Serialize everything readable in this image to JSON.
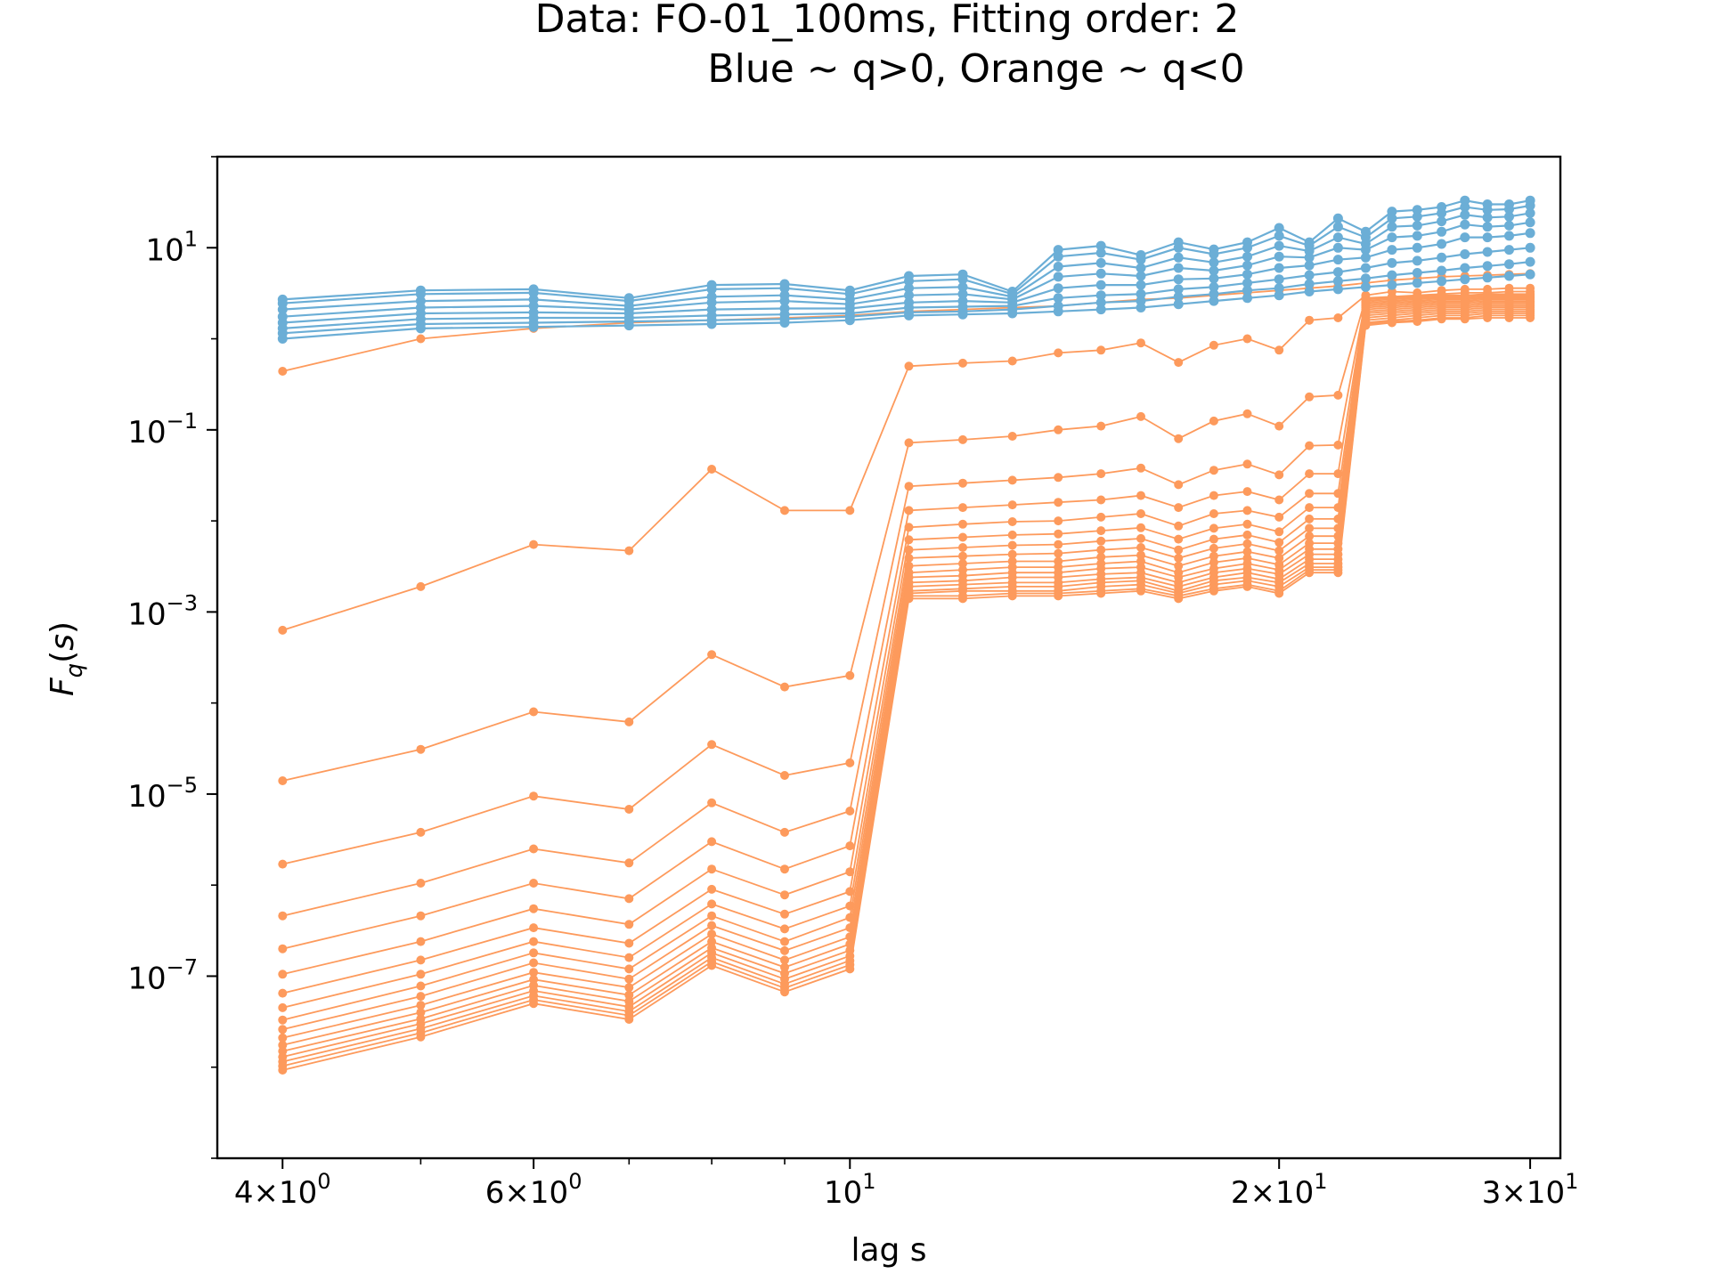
{
  "chart_data": {
    "type": "line",
    "title_line1": "Data: FO-01_100ms, Fitting order: 2",
    "title_line2": "Blue ~ q>0, Orange ~ q<0",
    "xlabel": "lag s",
    "ylabel": "F_q(s)",
    "xscale": "log",
    "yscale": "log",
    "xlim": [
      3.6,
      31.5
    ],
    "ylim": [
      1e-09,
      100
    ],
    "x": [
      4,
      5,
      6,
      7,
      8,
      9,
      10,
      11,
      12,
      13,
      14,
      15,
      16,
      17,
      18,
      19,
      20,
      21,
      22,
      23,
      24,
      25,
      26,
      27,
      28,
      29,
      30
    ],
    "x_ticks": [
      {
        "value": 4,
        "base": "4×10",
        "exp": "0"
      },
      {
        "value": 6,
        "base": "6×10",
        "exp": "0"
      },
      {
        "value": 10,
        "base": "10",
        "exp": "1"
      },
      {
        "value": 20,
        "base": "2×10",
        "exp": "1"
      },
      {
        "value": 30,
        "base": "3×10",
        "exp": "1"
      }
    ],
    "x_minor_ticks": [
      5,
      7,
      8,
      9
    ],
    "y_ticks": [
      {
        "value": 10,
        "base": "10",
        "exp": "1"
      },
      {
        "value": 0.1,
        "base": "10",
        "exp": "−1"
      },
      {
        "value": 0.001,
        "base": "10",
        "exp": "−3"
      },
      {
        "value": 1e-05,
        "base": "10",
        "exp": "−5"
      },
      {
        "value": 1e-07,
        "base": "10",
        "exp": "−7"
      }
    ],
    "colors": {
      "positive_q": "#6baed6",
      "negative_q": "#fd9a5c"
    },
    "grid": false,
    "legend": "none",
    "series_groups": [
      {
        "group": "orange",
        "color": "#fd9a5c",
        "description_of_trend": "q<0 curves",
        "series": [
          {
            "values": [
              0.44,
              1.0,
              1.3,
              1.5,
              1.6,
              1.7,
              1.8,
              2.0,
              2.1,
              2.2,
              2.3,
              2.5,
              2.7,
              2.8,
              3.0,
              3.2,
              3.4,
              3.6,
              3.8,
              4.1,
              4.4,
              4.6,
              4.8,
              4.9,
              5.0,
              5.1,
              5.2
            ]
          },
          {
            "values": [
              0.00063,
              0.0019,
              0.0055,
              0.0047,
              0.037,
              0.013,
              0.013,
              0.5,
              0.54,
              0.57,
              0.7,
              0.75,
              0.9,
              0.55,
              0.85,
              1.0,
              0.75,
              1.6,
              1.7,
              3.0,
              3.3,
              3.2,
              3.4,
              3.5,
              3.5,
              3.6,
              3.6
            ]
          },
          {
            "values": [
              1.4e-05,
              3.1e-05,
              8e-05,
              6.2e-05,
              0.00034,
              0.00015,
              0.0002,
              0.072,
              0.078,
              0.085,
              0.1,
              0.11,
              0.14,
              0.08,
              0.125,
              0.15,
              0.11,
              0.23,
              0.24,
              2.8,
              2.9,
              3.0,
              3.1,
              3.2,
              3.2,
              3.3,
              3.3
            ]
          },
          {
            "values": [
              1.7e-06,
              3.8e-06,
              9.5e-06,
              6.8e-06,
              3.5e-05,
              1.6e-05,
              2.2e-05,
              0.024,
              0.026,
              0.028,
              0.03,
              0.033,
              0.038,
              0.025,
              0.036,
              0.042,
              0.032,
              0.067,
              0.068,
              2.7,
              2.8,
              2.9,
              3.0,
              3.0,
              3.1,
              3.1,
              3.1
            ]
          },
          {
            "values": [
              4.6e-07,
              1.05e-06,
              2.5e-06,
              1.75e-06,
              8e-06,
              3.8e-06,
              6.5e-06,
              0.013,
              0.014,
              0.015,
              0.016,
              0.017,
              0.019,
              0.014,
              0.019,
              0.021,
              0.017,
              0.033,
              0.033,
              2.6,
              2.7,
              2.8,
              2.9,
              2.9,
              3.0,
              3.0,
              3.0
            ]
          },
          {
            "values": [
              2e-07,
              4.6e-07,
              1.05e-06,
              7.1e-07,
              3e-06,
              1.5e-06,
              2.7e-06,
              0.0085,
              0.0092,
              0.0098,
              0.01,
              0.011,
              0.012,
              0.0088,
              0.012,
              0.013,
              0.011,
              0.02,
              0.02,
              2.5,
              2.6,
              2.7,
              2.8,
              2.8,
              2.9,
              2.9,
              2.9
            ]
          },
          {
            "values": [
              1.05e-07,
              2.4e-07,
              5.5e-07,
              3.7e-07,
              1.5e-06,
              7.8e-07,
              1.4e-06,
              0.0062,
              0.0066,
              0.007,
              0.0072,
              0.0078,
              0.0084,
              0.0063,
              0.0083,
              0.0092,
              0.0076,
              0.014,
              0.014,
              2.4,
              2.5,
              2.6,
              2.7,
              2.7,
              2.8,
              2.8,
              2.8
            ]
          },
          {
            "values": [
              6.5e-08,
              1.5e-07,
              3.4e-07,
              2.3e-07,
              9e-07,
              4.8e-07,
              8.5e-07,
              0.0048,
              0.0051,
              0.0054,
              0.0055,
              0.006,
              0.0064,
              0.0048,
              0.0063,
              0.007,
              0.0058,
              0.0105,
              0.0105,
              2.3,
              2.4,
              2.5,
              2.6,
              2.6,
              2.7,
              2.7,
              2.7
            ]
          },
          {
            "values": [
              4.5e-08,
              1.05e-07,
              2.4e-07,
              1.6e-07,
              6.2e-07,
              3.3e-07,
              5.9e-07,
              0.0039,
              0.0041,
              0.0043,
              0.0044,
              0.0048,
              0.0051,
              0.0039,
              0.005,
              0.0056,
              0.0047,
              0.0083,
              0.0083,
              2.2,
              2.3,
              2.4,
              2.5,
              2.5,
              2.6,
              2.6,
              2.6
            ]
          },
          {
            "values": [
              3.3e-08,
              7.8e-08,
              1.8e-07,
              1.2e-07,
              4.6e-07,
              2.4e-07,
              4.4e-07,
              0.0032,
              0.0034,
              0.0036,
              0.0036,
              0.004,
              0.0042,
              0.0032,
              0.0041,
              0.0046,
              0.0039,
              0.0068,
              0.0068,
              2.1,
              2.2,
              2.3,
              2.4,
              2.4,
              2.5,
              2.5,
              2.5
            ]
          },
          {
            "values": [
              2.6e-08,
              6e-08,
              1.4e-07,
              9.3e-08,
              3.6e-07,
              1.9e-07,
              3.4e-07,
              0.0027,
              0.0029,
              0.0031,
              0.0031,
              0.0034,
              0.0036,
              0.0027,
              0.0035,
              0.0039,
              0.0033,
              0.0057,
              0.0057,
              2.0,
              2.1,
              2.2,
              2.3,
              2.3,
              2.4,
              2.4,
              2.4
            ]
          },
          {
            "values": [
              2.1e-08,
              4.8e-08,
              1.1e-07,
              7.5e-08,
              2.9e-07,
              1.5e-07,
              2.7e-07,
              0.0024,
              0.0025,
              0.0027,
              0.0027,
              0.003,
              0.0031,
              0.0024,
              0.003,
              0.0034,
              0.0029,
              0.0049,
              0.0049,
              1.9,
              2.0,
              2.1,
              2.2,
              2.2,
              2.3,
              2.3,
              2.3
            ]
          },
          {
            "values": [
              1.75e-08,
              4e-08,
              9.2e-08,
              6.2e-08,
              2.4e-07,
              1.25e-07,
              2.25e-07,
              0.0021,
              0.0022,
              0.0024,
              0.0024,
              0.0026,
              0.0027,
              0.0021,
              0.0027,
              0.003,
              0.0026,
              0.0043,
              0.0043,
              1.8,
              1.9,
              2.0,
              2.1,
              2.1,
              2.2,
              2.2,
              2.2
            ]
          },
          {
            "values": [
              1.5e-08,
              3.4e-08,
              7.9e-08,
              5.3e-08,
              2.05e-07,
              1.07e-07,
              1.92e-07,
              0.0019,
              0.002,
              0.0021,
              0.0021,
              0.0023,
              0.0024,
              0.0019,
              0.0024,
              0.0027,
              0.0023,
              0.0038,
              0.0038,
              1.7,
              1.8,
              1.9,
              2.0,
              2.0,
              2.1,
              2.1,
              2.1
            ]
          },
          {
            "values": [
              1.3e-08,
              3e-08,
              6.9e-08,
              4.6e-08,
              1.8e-07,
              9.3e-08,
              1.67e-07,
              0.0017,
              0.0018,
              0.0019,
              0.0019,
              0.0021,
              0.0022,
              0.0017,
              0.0022,
              0.0024,
              0.0021,
              0.0034,
              0.0034,
              1.6,
              1.7,
              1.8,
              1.9,
              1.9,
              2.0,
              2.0,
              2.0
            ]
          },
          {
            "values": [
              1.15e-08,
              2.65e-08,
              6.1e-08,
              4.1e-08,
              1.6e-07,
              8.2e-08,
              1.48e-07,
              0.0016,
              0.0017,
              0.0017,
              0.0017,
              0.0019,
              0.002,
              0.0016,
              0.002,
              0.0022,
              0.0019,
              0.0031,
              0.0031,
              1.5,
              1.6,
              1.7,
              1.8,
              1.8,
              1.9,
              1.9,
              1.9
            ]
          },
          {
            "values": [
              1.03e-08,
              2.38e-08,
              5.5e-08,
              3.7e-08,
              1.44e-07,
              7.4e-08,
              1.33e-07,
              0.0015,
              0.0015,
              0.0016,
              0.0016,
              0.0017,
              0.0018,
              0.0015,
              0.0018,
              0.002,
              0.0017,
              0.0029,
              0.0029,
              1.45,
              1.55,
              1.6,
              1.7,
              1.7,
              1.8,
              1.8,
              1.8
            ]
          },
          {
            "values": [
              9.3e-09,
              2.15e-08,
              5e-08,
              3.35e-08,
              1.31e-07,
              6.7e-08,
              1.2e-07,
              0.0014,
              0.0014,
              0.0015,
              0.0015,
              0.0016,
              0.0017,
              0.0014,
              0.0017,
              0.0019,
              0.0016,
              0.0027,
              0.0027,
              1.4,
              1.5,
              1.55,
              1.65,
              1.65,
              1.7,
              1.7,
              1.7
            ]
          }
        ]
      },
      {
        "group": "blue",
        "color": "#6baed6",
        "description_of_trend": "q>0 curves",
        "series": [
          {
            "values": [
              1.0,
              1.3,
              1.35,
              1.4,
              1.45,
              1.5,
              1.6,
              1.8,
              1.85,
              1.9,
              2.0,
              2.1,
              2.2,
              2.4,
              2.6,
              2.8,
              3.0,
              3.3,
              3.5,
              3.7,
              3.9,
              4.1,
              4.3,
              4.5,
              4.7,
              4.9,
              5.1
            ]
          },
          {
            "values": [
              1.15,
              1.45,
              1.5,
              1.55,
              1.6,
              1.65,
              1.75,
              1.95,
              2.0,
              2.1,
              2.3,
              2.5,
              2.6,
              2.9,
              3.1,
              3.4,
              3.6,
              4.0,
              4.3,
              4.6,
              5.0,
              5.3,
              5.6,
              6.0,
              6.3,
              6.6,
              7.0
            ]
          },
          {
            "values": [
              1.3,
              1.65,
              1.7,
              1.7,
              1.8,
              1.85,
              1.9,
              2.2,
              2.25,
              2.3,
              2.8,
              3.0,
              3.1,
              3.5,
              3.7,
              4.1,
              4.5,
              5.0,
              5.4,
              6.0,
              6.8,
              7.2,
              7.8,
              8.5,
              9.0,
              9.5,
              10.0
            ]
          },
          {
            "values": [
              1.5,
              1.9,
              1.95,
              1.9,
              2.1,
              2.15,
              2.15,
              2.5,
              2.6,
              2.5,
              3.6,
              3.9,
              3.9,
              4.5,
              4.6,
              5.1,
              6.0,
              6.4,
              7.4,
              7.8,
              9.5,
              10.0,
              11.0,
              13.0,
              13.0,
              13.5,
              14.5
            ]
          },
          {
            "values": [
              1.75,
              2.2,
              2.3,
              2.1,
              2.5,
              2.6,
              2.4,
              3.0,
              3.1,
              2.7,
              4.8,
              5.2,
              4.9,
              6.0,
              5.6,
              6.4,
              8.0,
              7.8,
              10.0,
              9.5,
              13.0,
              13.5,
              15.0,
              18.0,
              17.0,
              17.5,
              19.0
            ]
          },
          {
            "values": [
              2.1,
              2.6,
              2.7,
              2.3,
              2.9,
              3.0,
              2.7,
              3.6,
              3.7,
              2.9,
              6.2,
              6.8,
              6.0,
              7.8,
              6.9,
              8.0,
              10.5,
              9.2,
              13.0,
              11.0,
              17.0,
              17.5,
              19.5,
              23.0,
              21.5,
              22.0,
              24.0
            ]
          },
          {
            "values": [
              2.45,
              3.1,
              3.2,
              2.6,
              3.5,
              3.6,
              3.1,
              4.3,
              4.5,
              3.1,
              8.0,
              8.8,
              7.4,
              10.0,
              8.5,
              10.0,
              13.5,
              10.5,
              17.0,
              13.0,
              21.0,
              22.0,
              24.0,
              28.0,
              26.0,
              26.5,
              29.0
            ]
          },
          {
            "values": [
              2.7,
              3.4,
              3.5,
              2.8,
              3.9,
              4.0,
              3.4,
              4.9,
              5.1,
              3.3,
              9.5,
              10.5,
              8.3,
              11.5,
              9.6,
              11.5,
              16.5,
              11.5,
              21.0,
              15.0,
              25.0,
              26.0,
              28.0,
              33.0,
              30.0,
              30.0,
              33.0
            ]
          }
        ]
      }
    ]
  }
}
